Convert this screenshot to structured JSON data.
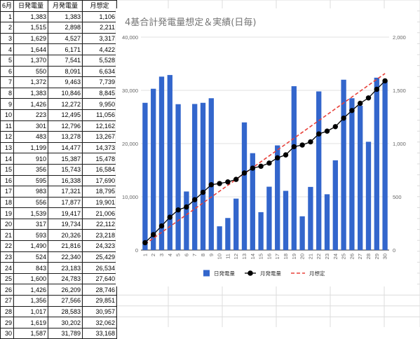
{
  "sheet": {
    "headers": [
      "6月",
      "日発電量",
      "月発電量",
      "月想定"
    ],
    "rows": [
      [
        "1",
        "1,383",
        "1,383",
        "1,106"
      ],
      [
        "2",
        "1,515",
        "2,898",
        "2,211"
      ],
      [
        "3",
        "1,629",
        "4,527",
        "3,317"
      ],
      [
        "4",
        "1,644",
        "6,171",
        "4,422"
      ],
      [
        "5",
        "1,370",
        "7,541",
        "5,528"
      ],
      [
        "6",
        "550",
        "8,091",
        "6,634"
      ],
      [
        "7",
        "1,372",
        "9,463",
        "7,739"
      ],
      [
        "8",
        "1,383",
        "10,846",
        "8,845"
      ],
      [
        "9",
        "1,426",
        "12,272",
        "9,950"
      ],
      [
        "10",
        "223",
        "12,495",
        "11,056"
      ],
      [
        "11",
        "301",
        "12,796",
        "12,162"
      ],
      [
        "12",
        "483",
        "13,278",
        "13,267"
      ],
      [
        "13",
        "1,199",
        "14,477",
        "14,373"
      ],
      [
        "14",
        "910",
        "15,387",
        "15,478"
      ],
      [
        "15",
        "356",
        "15,743",
        "16,584"
      ],
      [
        "16",
        "595",
        "16,338",
        "17,690"
      ],
      [
        "17",
        "983",
        "17,321",
        "18,795"
      ],
      [
        "18",
        "556",
        "17,877",
        "19,901"
      ],
      [
        "19",
        "1,539",
        "19,417",
        "21,006"
      ],
      [
        "20",
        "317",
        "19,734",
        "22,112"
      ],
      [
        "21",
        "593",
        "20,326",
        "23,218"
      ],
      [
        "22",
        "1,490",
        "21,816",
        "24,323"
      ],
      [
        "23",
        "524",
        "22,340",
        "25,429"
      ],
      [
        "24",
        "843",
        "23,183",
        "26,534"
      ],
      [
        "25",
        "1,600",
        "24,783",
        "27,640"
      ],
      [
        "26",
        "1,426",
        "26,209",
        "28,746"
      ],
      [
        "27",
        "1,356",
        "27,566",
        "29,851"
      ],
      [
        "28",
        "1,017",
        "28,583",
        "30,957"
      ],
      [
        "29",
        "1,619",
        "30,202",
        "32,062"
      ],
      [
        "30",
        "1,587",
        "31,789",
        "33,168"
      ]
    ]
  },
  "chart_data": {
    "type": "bar",
    "title": "4基合計発電量想定＆実績(日毎)",
    "categories": [
      "1",
      "2",
      "3",
      "4",
      "5",
      "6",
      "7",
      "8",
      "9",
      "10",
      "11",
      "12",
      "13",
      "14",
      "15",
      "16",
      "17",
      "18",
      "19",
      "20",
      "21",
      "22",
      "23",
      "24",
      "25",
      "26",
      "27",
      "28",
      "29",
      "30"
    ],
    "series": [
      {
        "name": "日発電量",
        "kind": "bar",
        "axis": "right",
        "color": "#3366cc",
        "values": [
          1383,
          1515,
          1629,
          1644,
          1370,
          550,
          1372,
          1383,
          1426,
          223,
          301,
          483,
          1199,
          910,
          356,
          595,
          983,
          556,
          1539,
          317,
          593,
          1490,
          524,
          843,
          1600,
          1426,
          1356,
          1017,
          1619,
          1587
        ]
      },
      {
        "name": "月発電量",
        "kind": "line-markers",
        "axis": "left",
        "color": "#000000",
        "values": [
          1383,
          2898,
          4527,
          6171,
          7541,
          8091,
          9463,
          10846,
          12272,
          12495,
          12796,
          13278,
          14477,
          15387,
          15743,
          16338,
          17321,
          17877,
          19417,
          19734,
          20326,
          21816,
          22340,
          23183,
          24783,
          26209,
          27566,
          28583,
          30202,
          31789
        ]
      },
      {
        "name": "月想定",
        "kind": "dashed-line",
        "axis": "left",
        "color": "#e8413a",
        "values": [
          1106,
          2211,
          3317,
          4422,
          5528,
          6634,
          7739,
          8845,
          9950,
          11056,
          12162,
          13267,
          14373,
          15478,
          16584,
          17690,
          18795,
          19901,
          21006,
          22112,
          23218,
          24323,
          25429,
          26534,
          27640,
          28746,
          29851,
          30957,
          32062,
          33168
        ]
      }
    ],
    "y_left": {
      "range": [
        0,
        40000
      ],
      "ticks": [
        0,
        10000,
        20000,
        30000,
        40000
      ],
      "tick_labels": [
        "0",
        "10,000",
        "20,000",
        "30,000",
        "40,000"
      ]
    },
    "y_right": {
      "range": [
        0,
        2000
      ],
      "ticks": [
        0,
        500,
        1000,
        1500,
        2000
      ],
      "tick_labels": [
        "0",
        "500",
        "1,000",
        "1,500",
        "2,000"
      ]
    },
    "grid": true,
    "legend": "bottom"
  }
}
